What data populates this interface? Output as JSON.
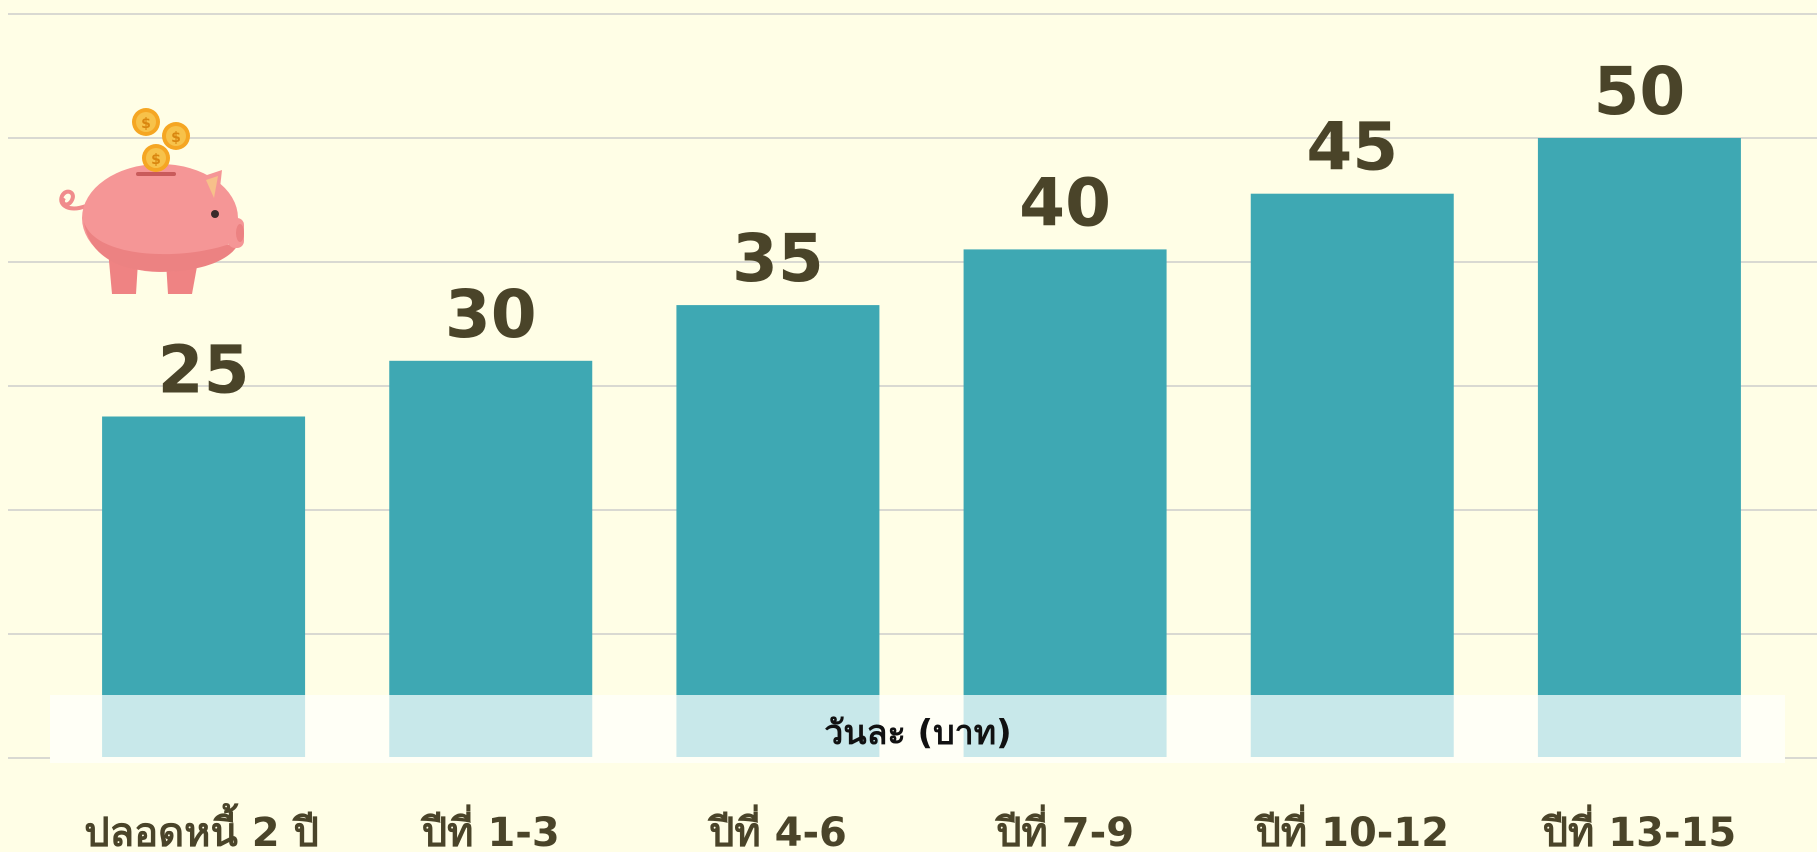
{
  "chart_data": {
    "type": "bar",
    "categories": [
      "ปลอดหนี้ 2 ปี",
      "ปีที่ 1-3",
      "ปีที่ 4-6",
      "ปีที่ 7-9",
      "ปีที่ 10-12",
      "ปีที่ 13-15"
    ],
    "values": [
      25,
      30,
      35,
      40,
      45,
      50
    ],
    "value_labels": [
      "25",
      "30",
      "35",
      "40",
      "45",
      "50"
    ],
    "band_label": "วันละ (บาท)",
    "ylim": [
      0,
      50
    ],
    "grid": true,
    "colors": {
      "bar": "#3EA8B3",
      "band": "#C8E8EA",
      "band_gap": "#FFFFF6",
      "background": "#FFFEE6",
      "grid": "#D9D9D2",
      "label": "#4A4429"
    },
    "decoration_icon": "piggy-bank-icon"
  }
}
